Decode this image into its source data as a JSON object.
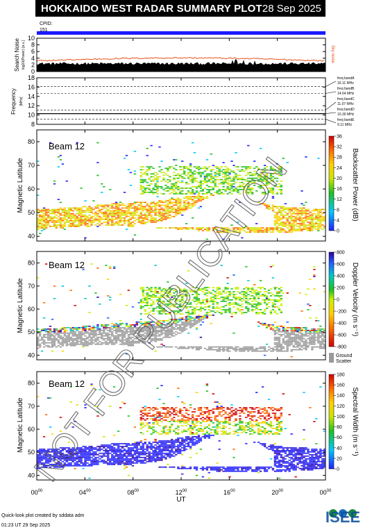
{
  "header": {
    "title": "HOKKAIDO WEST RADAR SUMMARY PLOT",
    "date": "28 Sep 2025"
  },
  "cpid": {
    "label": "CPID:",
    "value": "151"
  },
  "watermark": "NOT FOR PUBLICATION",
  "logo_text": "ISEE",
  "footer": {
    "created": "Quick-look plot created by sddata adm",
    "timestamp": "01:23 UT 29 Sep 2025"
  },
  "colors": {
    "beam_bar": "#1a1aff",
    "noise": "#e8501a",
    "ground": "#999999"
  },
  "chart_data": [
    {
      "type": "area",
      "panel": "search-noise",
      "ylabel_line1": "Search Noise",
      "ylabel_line2": "log10(Power) [a.u.]",
      "ylim": [
        0,
        10
      ],
      "y_ticks": [
        "0",
        "2",
        "4",
        "6",
        "8",
        "10"
      ],
      "side_label": "Sky noise"
    },
    {
      "type": "line",
      "panel": "frequency",
      "ylabel_line1": "Frequency",
      "ylabel_line2": "[MHz]",
      "ylim": [
        8,
        18
      ],
      "y_ticks": [
        "8",
        "10",
        "12",
        "14",
        "16",
        "18"
      ],
      "freq_bands": [
        {
          "name": "freq bandA",
          "value": "16.11 MHz",
          "mhz": 16.11
        },
        {
          "name": "freq bandB",
          "value": "14.64 MHz",
          "mhz": 14.64
        },
        {
          "name": "freq bandC",
          "value": "11.07 MHz",
          "mhz": 11.07
        },
        {
          "name": "freq bandD",
          "value": "10.30 MHz",
          "mhz": 10.3
        },
        {
          "name": "freq bandE",
          "value": "9.11 MHz",
          "mhz": 9.11
        }
      ]
    },
    {
      "type": "heatmap",
      "panel": "power",
      "beam_label": "Beam 12",
      "ylabel": "Magnetic Latitude",
      "ylim": [
        38,
        85
      ],
      "y_ticks": [
        "40",
        "50",
        "60",
        "70",
        "80"
      ],
      "colorbar_label": "Backscatter Power (dB)",
      "colorbar_ticks": [
        "0",
        "4",
        "8",
        "12",
        "16",
        "20",
        "24",
        "28",
        "32",
        "36"
      ]
    },
    {
      "type": "heatmap",
      "panel": "velocity",
      "beam_label": "Beam 12",
      "ylabel": "Magnetic Latitude",
      "ylim": [
        38,
        85
      ],
      "y_ticks": [
        "40",
        "50",
        "60",
        "70",
        "80"
      ],
      "colorbar_label": "Doppler Velocity (m s⁻¹)",
      "colorbar_ticks": [
        "-800",
        "-600",
        "-400",
        "-200",
        "0",
        "200",
        "400",
        "600",
        "800"
      ],
      "ground_label_1": "Ground",
      "ground_label_2": "Scatter"
    },
    {
      "type": "heatmap",
      "panel": "width",
      "beam_label": "Beam 12",
      "ylabel": "Magnetic Latitude",
      "ylim": [
        38,
        85
      ],
      "y_ticks": [
        "40",
        "50",
        "60",
        "70",
        "80"
      ],
      "colorbar_label": "Spectral Width (m s⁻¹)",
      "colorbar_ticks": [
        "0",
        "20",
        "40",
        "60",
        "80",
        "100",
        "120",
        "140",
        "160",
        "180"
      ]
    }
  ],
  "x_axis": {
    "label": "UT",
    "ticks": [
      "00",
      "04",
      "08",
      "12",
      "16",
      "20",
      "00"
    ],
    "tick_sup": "00",
    "range_hours": [
      0,
      24
    ]
  }
}
